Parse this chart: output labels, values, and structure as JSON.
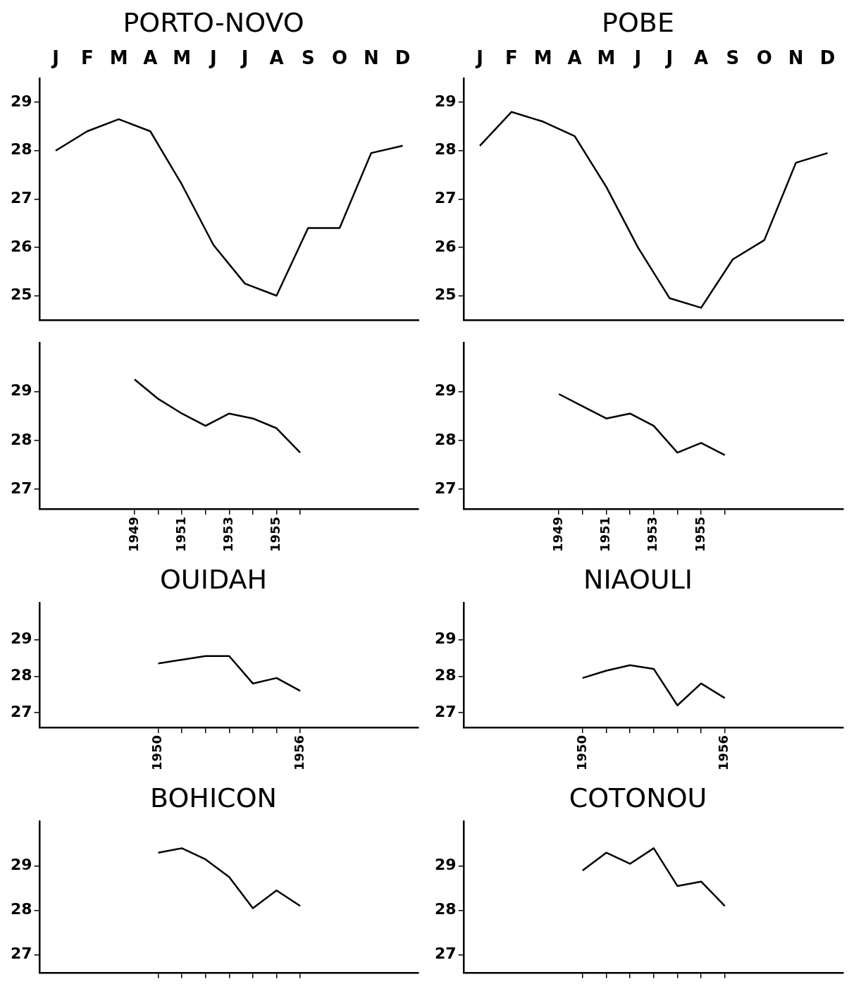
{
  "chart_data": [
    {
      "type": "line",
      "title": "PORTO-NOVO",
      "categories": [
        "J",
        "F",
        "M",
        "A",
        "M",
        "J",
        "J",
        "A",
        "S",
        "O",
        "N",
        "D"
      ],
      "values": [
        28.0,
        28.4,
        28.65,
        28.4,
        27.3,
        26.05,
        25.25,
        25.0,
        26.4,
        26.4,
        27.95,
        28.1
      ],
      "color": "#000000",
      "ylim": [
        24.5,
        29.5
      ],
      "yticks": [
        25,
        26,
        27,
        28,
        29
      ],
      "grid": false
    },
    {
      "type": "line",
      "title": "POBE",
      "categories": [
        "J",
        "F",
        "M",
        "A",
        "M",
        "J",
        "J",
        "A",
        "S",
        "O",
        "N",
        "D"
      ],
      "values": [
        28.1,
        28.8,
        28.6,
        28.3,
        27.25,
        26.0,
        24.95,
        24.75,
        25.75,
        26.15,
        27.75,
        27.95
      ],
      "color": "#000000",
      "ylim": [
        24.5,
        29.5
      ],
      "yticks": [
        25,
        26,
        27,
        28,
        29
      ],
      "grid": false
    },
    {
      "type": "line",
      "x": [
        1949,
        1950,
        1951,
        1952,
        1953,
        1954,
        1955,
        1956
      ],
      "values": [
        29.25,
        28.85,
        28.55,
        28.3,
        28.55,
        28.45,
        28.25,
        27.75
      ],
      "color": "#000000",
      "xlim": [
        1945,
        1961
      ],
      "xticks": [
        1949,
        {
          "value": 1950,
          "label": null
        },
        1951,
        {
          "value": 1952,
          "label": null
        },
        1953,
        {
          "value": 1954,
          "label": null
        },
        1955,
        {
          "value": 1956,
          "label": null
        }
      ],
      "ylim": [
        26.6,
        30
      ],
      "yticks": [
        27,
        28,
        29
      ],
      "grid": false
    },
    {
      "type": "line",
      "x": [
        1949,
        1950,
        1951,
        1952,
        1953,
        1954,
        1955,
        1956
      ],
      "values": [
        28.95,
        28.7,
        28.45,
        28.55,
        28.3,
        27.75,
        27.95,
        27.7
      ],
      "color": "#000000",
      "xlim": [
        1945,
        1961
      ],
      "xticks": [
        1949,
        {
          "value": 1950,
          "label": null
        },
        1951,
        {
          "value": 1952,
          "label": null
        },
        1953,
        {
          "value": 1954,
          "label": null
        },
        1955,
        {
          "value": 1956,
          "label": null
        }
      ],
      "ylim": [
        26.6,
        30
      ],
      "yticks": [
        27,
        28,
        29
      ],
      "grid": false
    },
    {
      "type": "line",
      "title": "OUIDAH",
      "x": [
        1950,
        1951,
        1952,
        1953,
        1954,
        1955,
        1956
      ],
      "values": [
        28.35,
        28.45,
        28.55,
        28.55,
        27.8,
        27.95,
        27.6
      ],
      "color": "#000000",
      "xlim": [
        1945,
        1961
      ],
      "xticks": [
        1950,
        {
          "value": 1951,
          "label": null
        },
        {
          "value": 1952,
          "label": null
        },
        {
          "value": 1953,
          "label": null
        },
        {
          "value": 1954,
          "label": null
        },
        {
          "value": 1955,
          "label": null
        },
        1956
      ],
      "ylim": [
        26.6,
        30
      ],
      "yticks": [
        27,
        28,
        29
      ],
      "grid": false
    },
    {
      "type": "line",
      "title": "NIAOULI",
      "x": [
        1950,
        1951,
        1952,
        1953,
        1954,
        1955,
        1956
      ],
      "values": [
        27.95,
        28.15,
        28.3,
        28.2,
        27.2,
        27.8,
        27.4
      ],
      "color": "#000000",
      "xlim": [
        1945,
        1961
      ],
      "xticks": [
        1950,
        {
          "value": 1951,
          "label": null
        },
        {
          "value": 1952,
          "label": null
        },
        {
          "value": 1953,
          "label": null
        },
        {
          "value": 1954,
          "label": null
        },
        {
          "value": 1955,
          "label": null
        },
        1956
      ],
      "ylim": [
        26.6,
        30
      ],
      "yticks": [
        27,
        28,
        29
      ],
      "grid": false
    },
    {
      "type": "line",
      "title": "BOHICON",
      "x": [
        1950,
        1951,
        1952,
        1953,
        1954,
        1955,
        1956
      ],
      "values": [
        29.3,
        29.4,
        29.15,
        28.75,
        28.05,
        28.45,
        28.1
      ],
      "color": "#000000",
      "xlim": [
        1945,
        1961
      ],
      "xticks": [
        {
          "value": 1950,
          "label": null
        },
        {
          "value": 1951,
          "label": null
        },
        {
          "value": 1952,
          "label": null
        },
        {
          "value": 1953,
          "label": null
        },
        {
          "value": 1954,
          "label": null
        },
        {
          "value": 1955,
          "label": null
        },
        {
          "value": 1956,
          "label": null
        }
      ],
      "ylim": [
        26.6,
        30
      ],
      "yticks": [
        27,
        28,
        29
      ],
      "grid": false,
      "tick_labels": "y"
    },
    {
      "type": "line",
      "title": "COTONOU",
      "x": [
        1950,
        1951,
        1952,
        1953,
        1954,
        1955,
        1956
      ],
      "values": [
        28.9,
        29.3,
        29.05,
        29.4,
        28.55,
        28.65,
        28.1
      ],
      "color": "#000000",
      "xlim": [
        1945,
        1961
      ],
      "xticks": [
        {
          "value": 1950,
          "label": null
        },
        {
          "value": 1951,
          "label": null
        },
        {
          "value": 1952,
          "label": null
        },
        {
          "value": 1953,
          "label": null
        },
        {
          "value": 1954,
          "label": null
        },
        {
          "value": 1955,
          "label": null
        },
        {
          "value": 1956,
          "label": null
        }
      ],
      "ylim": [
        26.6,
        30
      ],
      "yticks": [
        27,
        28,
        29
      ],
      "grid": false,
      "tick_labels": "y"
    }
  ]
}
